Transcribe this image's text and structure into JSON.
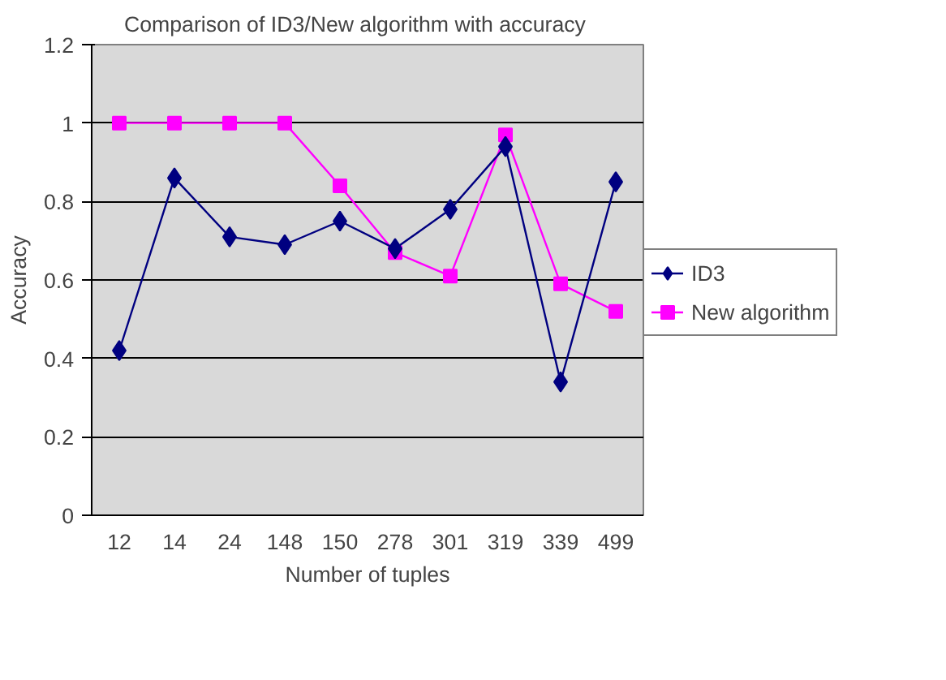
{
  "chart_data": {
    "type": "line",
    "title": "Comparison of ID3/New algorithm with accuracy",
    "xlabel": "Number of tuples",
    "ylabel": "Accuracy",
    "categories": [
      "12",
      "14",
      "24",
      "148",
      "150",
      "278",
      "301",
      "319",
      "339",
      "499"
    ],
    "series": [
      {
        "name": "ID3",
        "color": "#000080",
        "marker": "diamond",
        "values": [
          0.42,
          0.86,
          0.71,
          0.69,
          0.75,
          0.68,
          0.78,
          0.94,
          0.34,
          0.85
        ]
      },
      {
        "name": "New algorithm",
        "color": "#ff00ff",
        "marker": "square",
        "values": [
          1.0,
          1.0,
          1.0,
          1.0,
          0.84,
          0.67,
          0.61,
          0.97,
          0.59,
          0.52
        ]
      }
    ],
    "ylim": [
      0,
      1.2
    ],
    "yticks": [
      0,
      0.2,
      0.4,
      0.6,
      0.8,
      1,
      1.2
    ],
    "grid": "y",
    "legend": "right",
    "line_style": "solid"
  }
}
